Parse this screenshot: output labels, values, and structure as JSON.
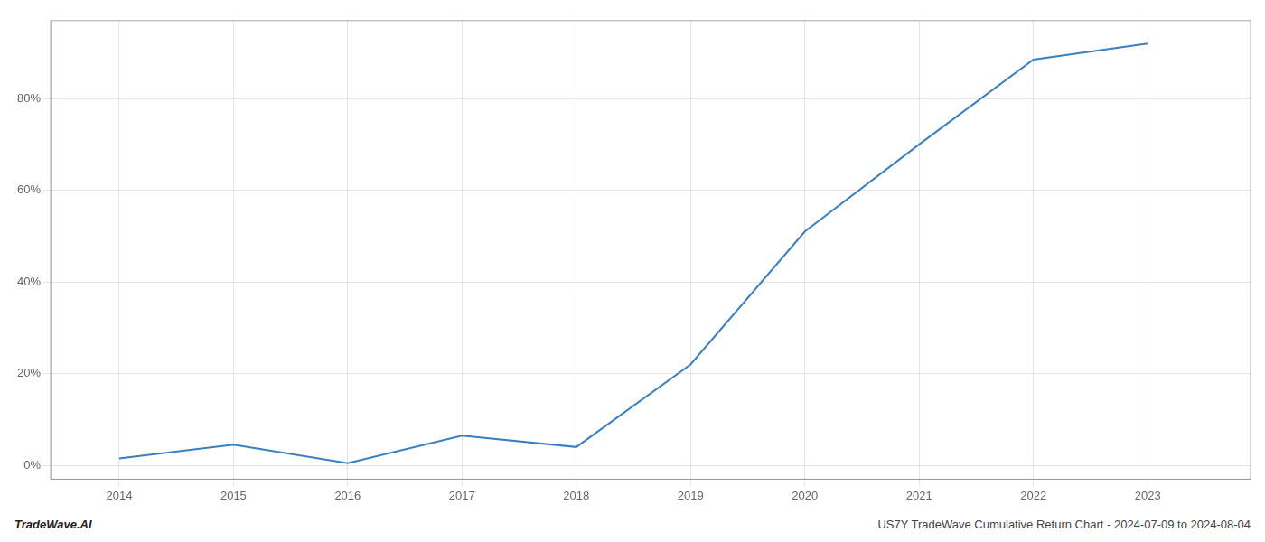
{
  "chart_data": {
    "type": "line",
    "x": [
      2014,
      2015,
      2016,
      2017,
      2018,
      2019,
      2020,
      2021,
      2022,
      2023
    ],
    "values": [
      1.5,
      4.5,
      0.5,
      6.5,
      4.0,
      22.0,
      51.0,
      70.0,
      88.5,
      92.0
    ],
    "color": "#3a7fc1",
    "xlim": [
      2013.4,
      2023.9
    ],
    "xticks": [
      2014,
      2015,
      2016,
      2017,
      2018,
      2019,
      2020,
      2021,
      2022,
      2023
    ],
    "ylim": [
      -3,
      97
    ],
    "yticks": [
      {
        "value": 0,
        "label": "0%"
      },
      {
        "value": 20,
        "label": "20%"
      },
      {
        "value": 40,
        "label": "40%"
      },
      {
        "value": 60,
        "label": "60%"
      },
      {
        "value": 80,
        "label": "80%"
      }
    ],
    "grid": true,
    "annotations": [
      "TradeWave.AI",
      "US7Y TradeWave Cumulative Return Chart - 2024-07-09 to 2024-08-04"
    ]
  }
}
